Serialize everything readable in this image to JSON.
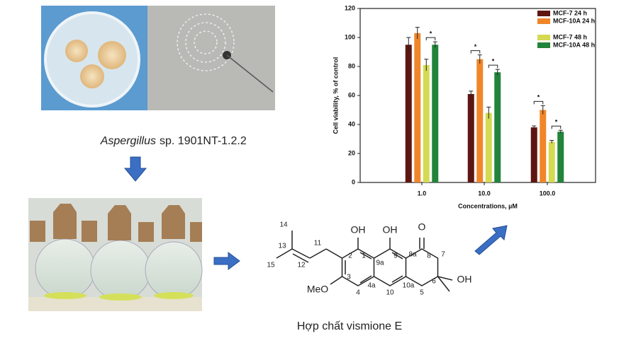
{
  "organism_genus": "Aspergillus",
  "organism_rest": "sp. 1901NT-1.2.2",
  "compound_caption": "Hợp chất vismione E",
  "structure": {
    "labels": [
      "OH",
      "OH",
      "O",
      "OH",
      "MeO",
      "14",
      "13",
      "15",
      "12",
      "11",
      "2",
      "1",
      "9",
      "8a",
      "8",
      "7",
      "9a",
      "6",
      "3",
      "4",
      "4a",
      "10",
      "10a",
      "5"
    ]
  },
  "significance": "*",
  "chart_data": {
    "type": "bar",
    "ylabel": "Cell viability, % of control",
    "xlabel": "Concentrations, µM",
    "categories": [
      "1.0",
      "10.0",
      "100.0"
    ],
    "series": [
      {
        "name": "MCF-7 24 h",
        "color": "#5e1610",
        "values": [
          95,
          61,
          38
        ],
        "errors": [
          5,
          2,
          1
        ]
      },
      {
        "name": "MCF-10A 24 h",
        "color": "#f0862a",
        "values": [
          103,
          85,
          50
        ],
        "errors": [
          4,
          3,
          3
        ]
      },
      {
        "name": "MCF-7 48 h",
        "color": "#d4da52",
        "values": [
          81,
          48,
          28
        ],
        "errors": [
          4,
          4,
          1
        ]
      },
      {
        "name": "MCF-10A 48 h",
        "color": "#22843a",
        "values": [
          95,
          76,
          35
        ],
        "errors": [
          2,
          2,
          1
        ]
      }
    ],
    "ylim": [
      0,
      120
    ],
    "yticks": [
      0,
      20,
      40,
      60,
      80,
      100,
      120
    ]
  }
}
